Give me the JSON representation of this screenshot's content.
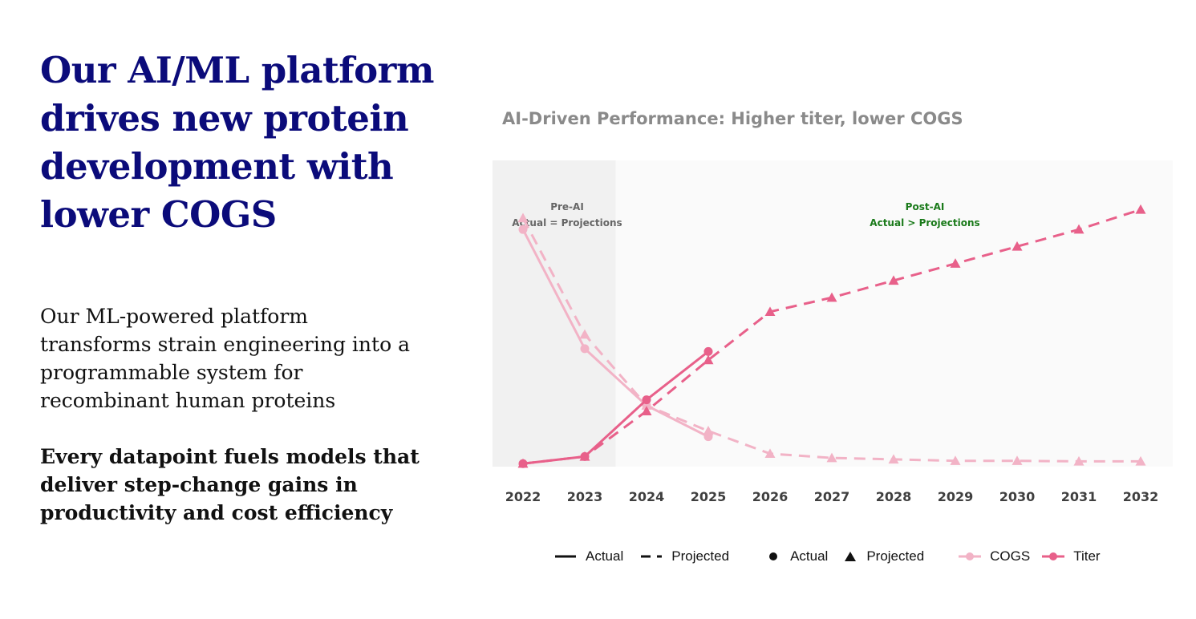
{
  "headline": "Our AI/ML platform drives new protein development with lower COGS",
  "body": "Our ML-powered platform transforms strain engineering into a programmable system for recombinant human proteins",
  "body_bold": "Every datapoint fuels models that deliver step-change gains in productivity and cost efficiency",
  "colors": {
    "headline": "#0b0b7a",
    "titer": "#e8608a",
    "cogs": "#f2b3c6",
    "post_ai": "#1a7a1a",
    "pre_ai": "#666666"
  },
  "chart_data": {
    "type": "line",
    "title": "AI-Driven Performance: Higher titer, lower COGS",
    "categories": [
      "2022",
      "2023",
      "2024",
      "2025",
      "2026",
      "2027",
      "2028",
      "2029",
      "2030",
      "2031",
      "2032"
    ],
    "xlabel": "",
    "ylabel": "",
    "ylim": [
      0,
      100
    ],
    "shaded_region": {
      "from": "2022",
      "to": "2023"
    },
    "annotations": [
      {
        "lines": [
          "Pre-AI",
          "Actual = Projections"
        ],
        "color": "#666666"
      },
      {
        "lines": [
          "Post-AI",
          "Actual > Projections"
        ],
        "color": "#1a7a1a"
      }
    ],
    "series": [
      {
        "name": "COGS Actual",
        "metric": "COGS",
        "kind": "actual",
        "color": "#f2b3c6",
        "x": [
          "2022",
          "2023",
          "2024",
          "2025"
        ],
        "values": [
          83,
          41,
          21,
          10
        ]
      },
      {
        "name": "COGS Projected",
        "metric": "COGS",
        "kind": "projected",
        "color": "#f2b3c6",
        "x": [
          "2022",
          "2023",
          "2024",
          "2025",
          "2026",
          "2027",
          "2028",
          "2029",
          "2030",
          "2031",
          "2032"
        ],
        "values": [
          87,
          46,
          21,
          12,
          4,
          2.5,
          2,
          1.5,
          1.5,
          1.3,
          1.3
        ]
      },
      {
        "name": "Titer Actual",
        "metric": "Titer",
        "kind": "actual",
        "color": "#e8608a",
        "x": [
          "2022",
          "2023",
          "2024",
          "2025"
        ],
        "values": [
          0.5,
          3,
          23,
          40
        ]
      },
      {
        "name": "Titer Projected",
        "metric": "Titer",
        "kind": "projected",
        "color": "#e8608a",
        "x": [
          "2022",
          "2023",
          "2024",
          "2025",
          "2026",
          "2027",
          "2028",
          "2029",
          "2030",
          "2031",
          "2032"
        ],
        "values": [
          0.5,
          3,
          19,
          37,
          54,
          59,
          65,
          71,
          77,
          83,
          90
        ]
      }
    ],
    "legend": {
      "line_styles": [
        "Actual",
        "Projected"
      ],
      "markers": [
        "Actual",
        "Projected"
      ],
      "metrics": [
        "COGS",
        "Titer"
      ]
    }
  }
}
